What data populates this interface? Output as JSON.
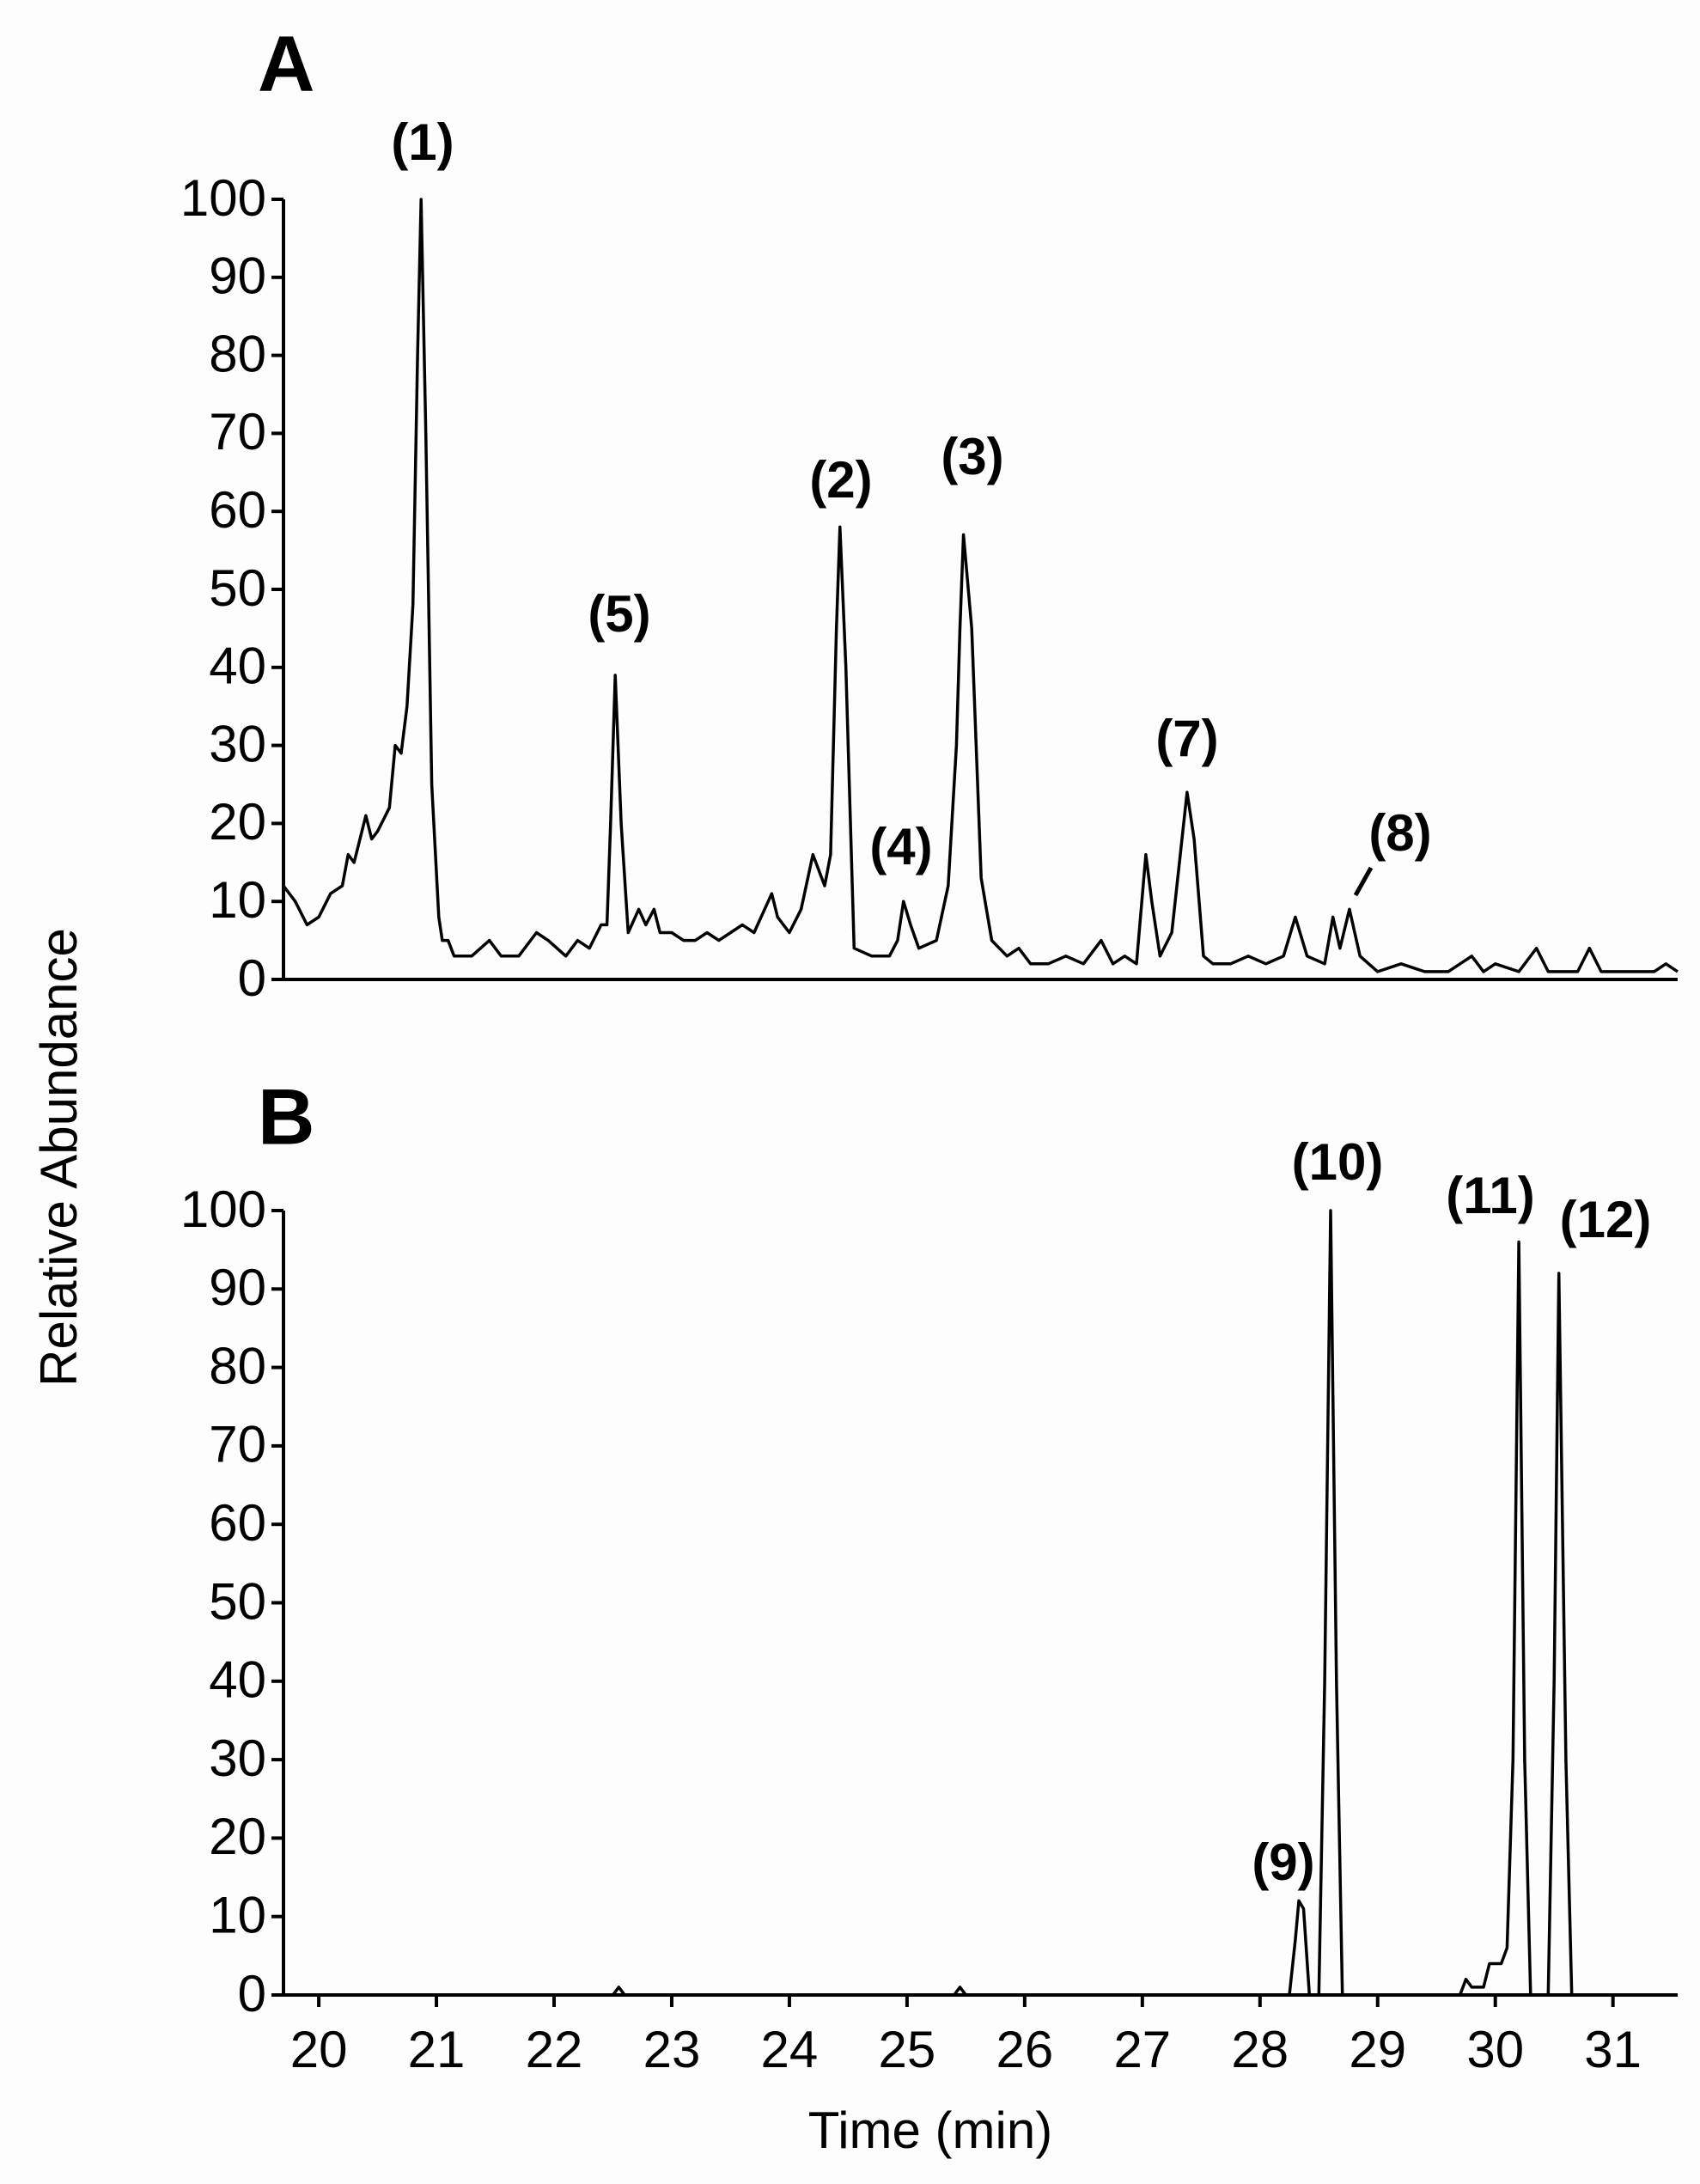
{
  "chart_data": [
    {
      "type": "line",
      "title": "A",
      "ylabel": "Relative Abundance",
      "xlim": [
        19.7,
        31.55
      ],
      "ylim": [
        0,
        100
      ],
      "yticks": [
        0,
        10,
        20,
        30,
        40,
        50,
        60,
        70,
        80,
        90,
        100
      ],
      "color": "#000000",
      "annotations": [
        "(1)",
        "(5)",
        "(2)",
        "(3)",
        "(4)",
        "(7)",
        "(8)"
      ],
      "x": [
        19.7,
        19.8,
        19.9,
        20.0,
        20.1,
        20.2,
        20.25,
        20.3,
        20.4,
        20.45,
        20.5,
        20.6,
        20.65,
        20.7,
        20.75,
        20.8,
        20.84,
        20.87,
        20.91,
        20.96,
        21.02,
        21.05,
        21.1,
        21.15,
        21.3,
        21.45,
        21.55,
        21.7,
        21.85,
        21.95,
        22.1,
        22.2,
        22.3,
        22.4,
        22.45,
        22.48,
        22.52,
        22.57,
        22.63,
        22.72,
        22.78,
        22.85,
        22.9,
        23.0,
        23.1,
        23.2,
        23.3,
        23.4,
        23.5,
        23.6,
        23.7,
        23.85,
        23.9,
        24.0,
        24.1,
        24.2,
        24.25,
        24.3,
        24.35,
        24.4,
        24.43,
        24.48,
        24.55,
        24.7,
        24.85,
        24.92,
        24.97,
        25.03,
        25.1,
        25.25,
        25.35,
        25.42,
        25.45,
        25.48,
        25.55,
        25.63,
        25.72,
        25.85,
        25.95,
        26.05,
        26.2,
        26.35,
        26.5,
        26.65,
        26.75,
        26.85,
        26.95,
        27.03,
        27.08,
        27.15,
        27.25,
        27.38,
        27.44,
        27.52,
        27.6,
        27.75,
        27.9,
        28.05,
        28.2,
        28.3,
        28.4,
        28.55,
        28.62,
        28.68,
        28.76,
        28.85,
        29.0,
        29.2,
        29.4,
        29.6,
        29.8,
        29.9,
        30.0,
        30.2,
        30.35,
        30.45,
        30.7,
        30.8,
        30.9,
        31.1,
        31.35,
        31.45,
        31.55
      ],
      "values": [
        12,
        10,
        7,
        8,
        11,
        12,
        16,
        15,
        21,
        18,
        19,
        22,
        30,
        29,
        35,
        48,
        80,
        100,
        70,
        25,
        8,
        5,
        5,
        3,
        3,
        5,
        3,
        3,
        6,
        5,
        3,
        5,
        4,
        7,
        7,
        20,
        39,
        20,
        6,
        9,
        7,
        9,
        6,
        6,
        5,
        5,
        6,
        5,
        6,
        7,
        6,
        11,
        8,
        6,
        9,
        16,
        14,
        12,
        16,
        45,
        58,
        40,
        4,
        3,
        3,
        5,
        10,
        7,
        4,
        5,
        12,
        30,
        45,
        57,
        45,
        13,
        5,
        3,
        4,
        2,
        2,
        3,
        2,
        5,
        2,
        3,
        2,
        16,
        10,
        3,
        6,
        24,
        18,
        3,
        2,
        2,
        3,
        2,
        3,
        8,
        3,
        2,
        8,
        4,
        9,
        3,
        1,
        2,
        1,
        1,
        3,
        1,
        2,
        1,
        4,
        1,
        1,
        4,
        1,
        1,
        1,
        2,
        1
      ]
    },
    {
      "type": "line",
      "title": "B",
      "xlabel": "Time (min)",
      "xlim": [
        19.7,
        31.55
      ],
      "ylim": [
        0,
        100
      ],
      "yticks": [
        0,
        10,
        20,
        30,
        40,
        50,
        60,
        70,
        80,
        90,
        100
      ],
      "xticks": [
        20,
        21,
        22,
        23,
        24,
        25,
        26,
        27,
        28,
        29,
        30,
        31
      ],
      "color": "#000000",
      "annotations": [
        "(9)",
        "(10)",
        "(11)",
        "(12)"
      ],
      "x": [
        19.7,
        22.5,
        22.55,
        22.6,
        25.4,
        25.45,
        25.5,
        28.25,
        28.3,
        28.33,
        28.37,
        28.42,
        28.5,
        28.55,
        28.6,
        28.65,
        28.7,
        29.7,
        29.75,
        29.8,
        29.9,
        29.95,
        30.05,
        30.1,
        30.15,
        30.2,
        30.25,
        30.3,
        30.45,
        30.5,
        30.54,
        30.6,
        30.65,
        31.55
      ],
      "values": [
        0,
        0,
        1,
        0,
        0,
        1,
        0,
        0,
        7,
        12,
        11,
        0,
        0,
        40,
        100,
        40,
        0,
        0,
        2,
        1,
        1,
        4,
        4,
        6,
        30,
        96,
        30,
        0,
        0,
        40,
        92,
        30,
        0,
        0
      ]
    }
  ]
}
